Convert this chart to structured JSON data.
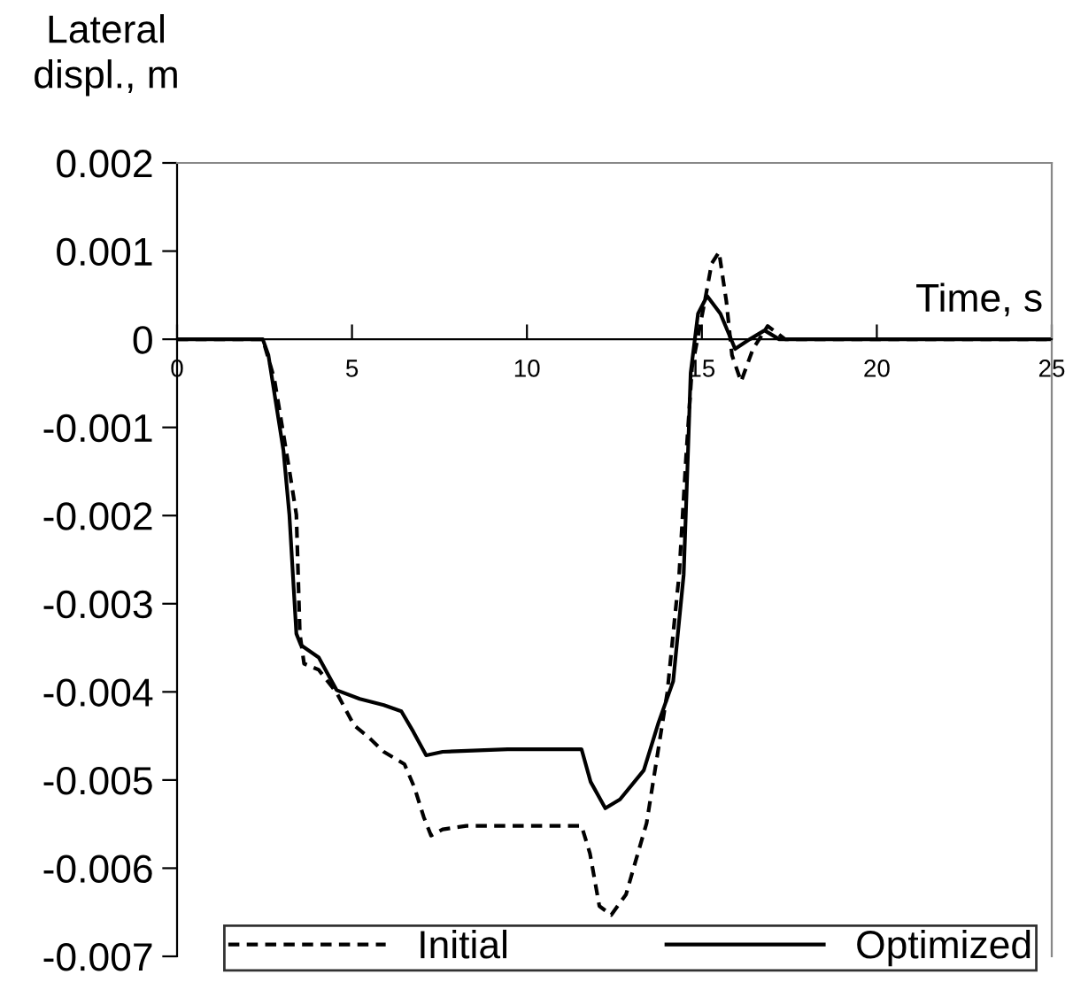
{
  "chart_data": {
    "type": "line",
    "xlabel": "Time, s",
    "ylabel": "Lateral\ndispl., m",
    "xlim": [
      0,
      25
    ],
    "xticks": [
      0,
      5,
      10,
      15,
      20,
      25
    ],
    "ylim": [
      -0.007,
      0.002
    ],
    "yticks": [
      0.002,
      0.001,
      0,
      -0.001,
      -0.002,
      -0.003,
      -0.004,
      -0.005,
      -0.006,
      -0.007
    ],
    "grid": false,
    "legend": "bottom",
    "series": [
      {
        "name": "Initial",
        "color": "#000000",
        "line_style": "dashed",
        "x": [
          0,
          2.45,
          2.78,
          3.2,
          3.41,
          3.51,
          3.63,
          4.05,
          4.56,
          5.06,
          5.49,
          5.91,
          6.5,
          6.79,
          7.05,
          7.26,
          7.59,
          8.27,
          11.56,
          11.8,
          12.07,
          12.41,
          12.83,
          13.42,
          14.01,
          14.35,
          14.55,
          14.72,
          15.11,
          15.28,
          15.49,
          15.7,
          15.86,
          16.12,
          16.46,
          16.88,
          17.38,
          17.72,
          25
        ],
        "values": [
          0,
          0,
          -0.00045,
          -0.00146,
          -0.00199,
          -0.00334,
          -0.00368,
          -0.00375,
          -0.00401,
          -0.00438,
          -0.00452,
          -0.00468,
          -0.00482,
          -0.00509,
          -0.00542,
          -0.00563,
          -0.00556,
          -0.00552,
          -0.00552,
          -0.00583,
          -0.00643,
          -0.00653,
          -0.0063,
          -0.00549,
          -0.00401,
          -0.00267,
          -0.00132,
          -0.00032,
          0.00049,
          0.00086,
          0.00099,
          0.00043,
          -0.00018,
          -0.00048,
          -0.00011,
          0.00015,
          0,
          0,
          0
        ]
      },
      {
        "name": "Optimized",
        "color": "#000000",
        "line_style": "solid",
        "x": [
          0,
          2.45,
          2.61,
          3.04,
          3.21,
          3.41,
          3.54,
          4.05,
          4.56,
          5.22,
          5.91,
          6.41,
          6.75,
          7.12,
          7.59,
          9.45,
          11.56,
          11.82,
          12.24,
          12.66,
          13.34,
          13.76,
          14.18,
          14.48,
          14.6,
          14.68,
          14.89,
          15.15,
          15.53,
          15.95,
          16.37,
          16.79,
          17.21,
          25
        ],
        "values": [
          0,
          0,
          -0.00018,
          -0.00126,
          -0.00199,
          -0.00334,
          -0.00347,
          -0.00361,
          -0.00398,
          -0.00408,
          -0.00415,
          -0.00422,
          -0.00445,
          -0.00472,
          -0.00468,
          -0.00465,
          -0.00465,
          -0.00502,
          -0.00532,
          -0.00522,
          -0.00489,
          -0.00435,
          -0.00388,
          -0.00267,
          -0.00132,
          -0.00038,
          0.00029,
          0.00049,
          0.00029,
          -0.00011,
          0,
          0.0001,
          0,
          0
        ]
      }
    ]
  }
}
